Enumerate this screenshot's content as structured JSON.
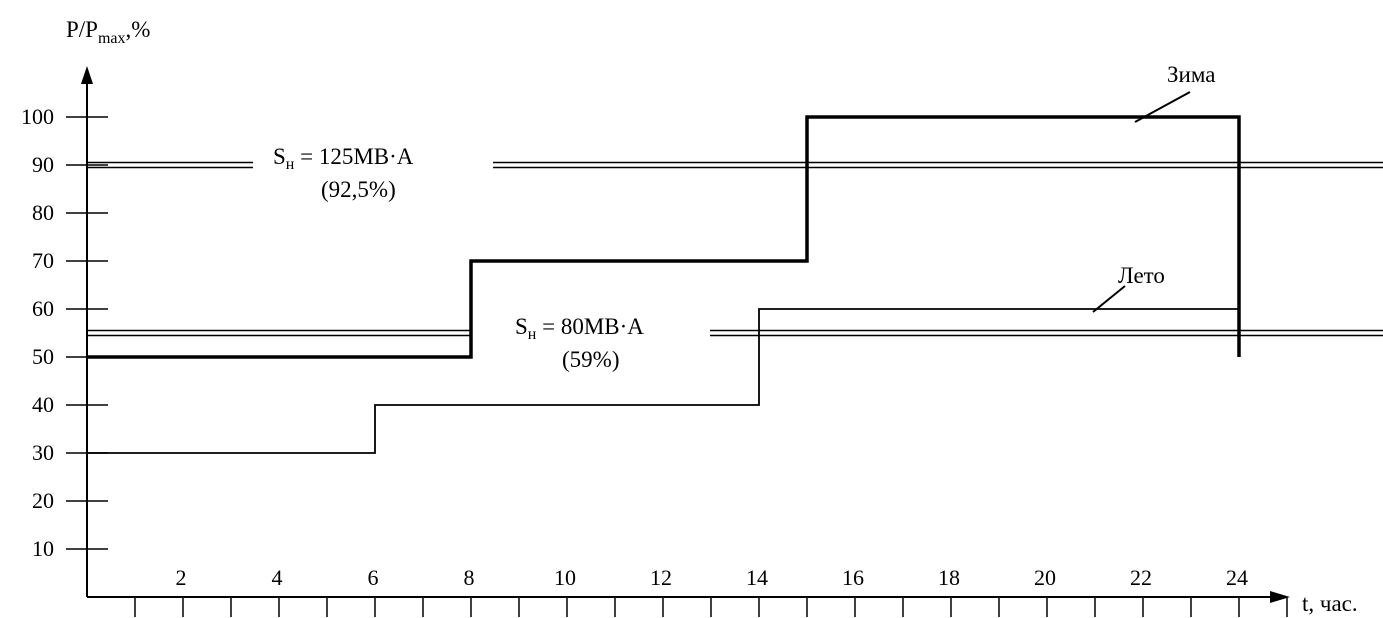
{
  "chart_data": {
    "type": "line",
    "ylabel_main": "P/P",
    "ylabel_sub": "max",
    "ylabel_unit": ",%",
    "xlabel": "t, час.",
    "x_tick_labels": [
      "2",
      "4",
      "6",
      "8",
      "10",
      "12",
      "14",
      "16",
      "18",
      "20",
      "22",
      "24"
    ],
    "y_tick_labels": [
      "10",
      "20",
      "30",
      "40",
      "50",
      "60",
      "70",
      "80",
      "90",
      "100"
    ],
    "xlim": [
      0,
      24
    ],
    "ylim": [
      0,
      100
    ],
    "series": [
      {
        "name": "Зима",
        "step_points": [
          [
            0,
            50
          ],
          [
            8,
            50
          ],
          [
            8,
            70
          ],
          [
            15,
            70
          ],
          [
            15,
            100
          ],
          [
            24,
            100
          ],
          [
            24,
            50
          ]
        ]
      },
      {
        "name": "Лето",
        "step_points": [
          [
            0,
            30
          ],
          [
            6,
            30
          ],
          [
            6,
            40
          ],
          [
            14,
            40
          ],
          [
            14,
            60
          ],
          [
            24,
            60
          ]
        ]
      }
    ],
    "reference_lines": [
      {
        "label_main": "S",
        "label_sub": "н",
        "label_value": " = 125МВ·А",
        "label_pct": "(92,5%)",
        "y": 90
      },
      {
        "label_main": "S",
        "label_sub": "н",
        "label_value": " = 80МВ·А",
        "label_pct": "(59%)",
        "y": 55
      }
    ]
  }
}
